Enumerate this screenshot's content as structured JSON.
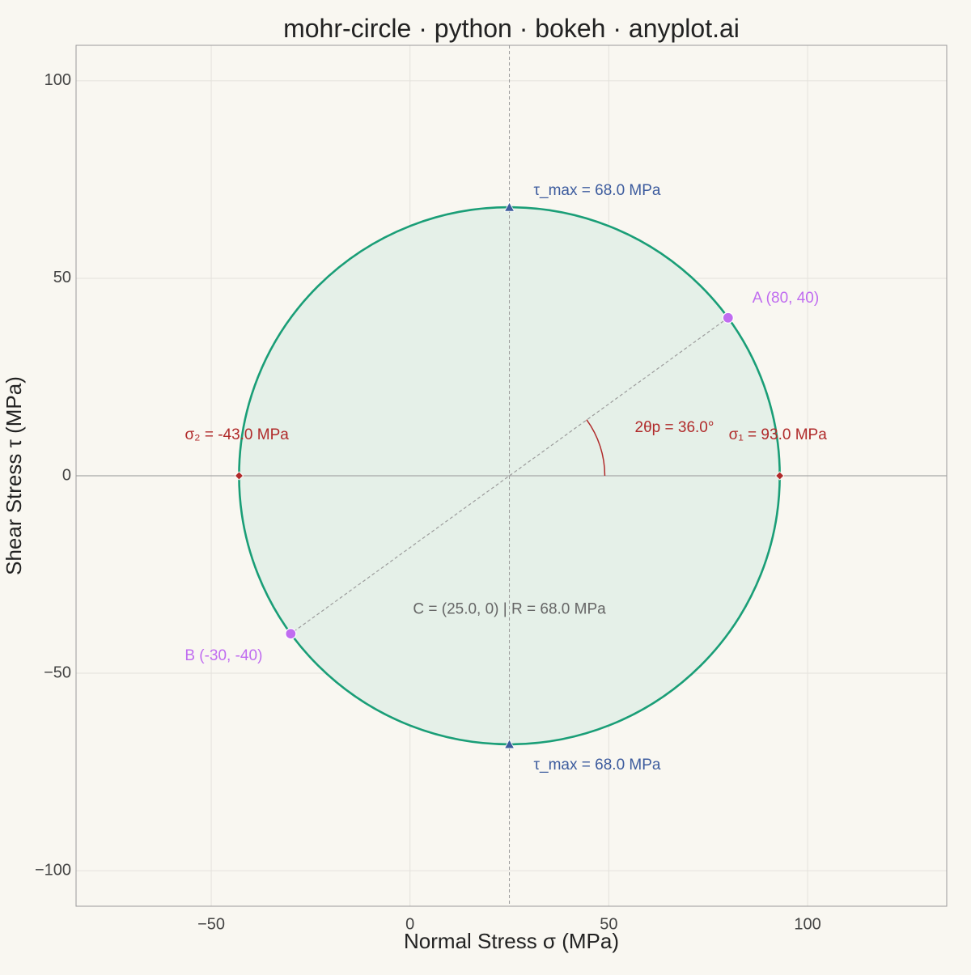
{
  "chart_data": {
    "type": "scatter",
    "title": "mohr-circle · python · bokeh · anyplot.ai",
    "xlabel": "Normal Stress σ (MPa)",
    "ylabel": "Shear Stress τ (MPa)",
    "xlim": [
      -84,
      135
    ],
    "ylim": [
      -109,
      109
    ],
    "x_ticks": [
      -50,
      0,
      50,
      100
    ],
    "y_ticks": [
      -100,
      -50,
      0,
      50,
      100
    ],
    "x_tick_labels": [
      "−50",
      "0",
      "50",
      "100"
    ],
    "y_tick_labels": [
      "−100",
      "−50",
      "0",
      "50",
      "100"
    ],
    "grid": true,
    "circle": {
      "center": [
        25,
        0
      ],
      "radius": 68
    },
    "stress_points": [
      {
        "name": "A",
        "x": 80,
        "y": 40,
        "label": "A (80, 40)"
      },
      {
        "name": "B",
        "x": -30,
        "y": -40,
        "label": "B (-30, -40)"
      }
    ],
    "principal_stresses": [
      {
        "name": "sigma1",
        "x": 93,
        "y": 0,
        "label": "σ₁ = 93.0 MPa"
      },
      {
        "name": "sigma2",
        "x": -43,
        "y": 0,
        "label": "σ₂ = -43.0 MPa"
      }
    ],
    "max_shear": [
      {
        "name": "tau-max-top",
        "x": 25,
        "y": 68,
        "label": "τ_max = 68.0 MPa"
      },
      {
        "name": "tau-max-bottom",
        "x": 25,
        "y": -68,
        "label": "τ_max = 68.0 MPa"
      }
    ],
    "angle": {
      "degrees": 36,
      "label": "2θp = 36.0°"
    },
    "center_label": "C = (25.0, 0)  |  R = 68.0 MPa",
    "colors": {
      "background": "#f9f7f1",
      "circle": "#1a9e77",
      "circle_fill": "#e5f0e8",
      "stress_point": "#c06cf0",
      "principal": "#b02a2a",
      "max_shear": "#3d5c9e",
      "center_text": "#666666",
      "grid": "#e4e2dc",
      "zero_line": "#a8a8a8",
      "guide": "#9c9c9c"
    }
  }
}
